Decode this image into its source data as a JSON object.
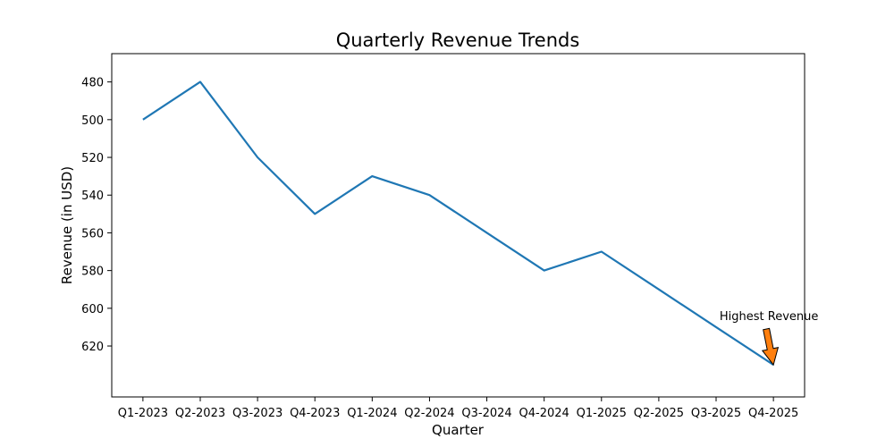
{
  "chart_data": {
    "type": "line",
    "title": "Quarterly Revenue Trends",
    "xlabel": "Quarter",
    "ylabel": "Revenue (in USD)",
    "categories": [
      "Q1-2023",
      "Q2-2023",
      "Q3-2023",
      "Q4-2023",
      "Q1-2024",
      "Q2-2024",
      "Q3-2024",
      "Q4-2024",
      "Q1-2025",
      "Q2-2025",
      "Q3-2025",
      "Q4-2025"
    ],
    "series": [
      {
        "values": [
          500,
          480,
          520,
          550,
          530,
          540,
          560,
          580,
          570,
          590,
          610,
          630
        ],
        "color": "#1f77b4"
      }
    ],
    "y_axis": {
      "inverted": true,
      "ylim": [
        465,
        647
      ],
      "ticks": [
        480,
        500,
        520,
        540,
        560,
        580,
        600,
        620
      ]
    },
    "grid": false,
    "annotation": {
      "text": "Highest Revenue",
      "category": "Q4-2025",
      "value": 630,
      "arrow_color": "#ff7f0e"
    }
  }
}
